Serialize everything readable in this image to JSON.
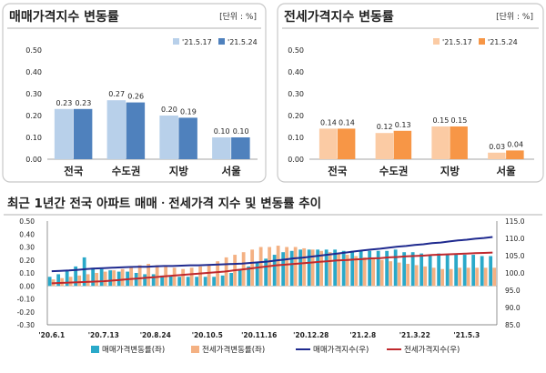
{
  "chart_data": [
    {
      "type": "bar",
      "title": "매매가격지수 변동률",
      "unit_label": "[단위 : %]",
      "categories": [
        "전국",
        "수도권",
        "지방",
        "서울"
      ],
      "series": [
        {
          "name": "'21.5.17",
          "values": [
            0.23,
            0.27,
            0.2,
            0.1
          ],
          "color": "#b8d0ea"
        },
        {
          "name": "'21.5.24",
          "values": [
            0.23,
            0.26,
            0.19,
            0.1
          ],
          "color": "#4f81bd"
        }
      ],
      "value_labels": [
        [
          "0.23",
          "0.27",
          "0.20",
          "0.10"
        ],
        [
          "0.23",
          "0.26",
          "0.19",
          "0.10"
        ]
      ],
      "ylim": [
        0,
        0.5
      ],
      "yticks": [
        "0.00",
        "0.10",
        "0.20",
        "0.30",
        "0.40",
        "0.50"
      ],
      "grid": false,
      "legend": "top-right"
    },
    {
      "type": "bar",
      "title": "전세가격지수 변동률",
      "unit_label": "[단위 : %]",
      "categories": [
        "전국",
        "수도권",
        "지방",
        "서울"
      ],
      "series": [
        {
          "name": "'21.5.17",
          "values": [
            0.14,
            0.12,
            0.15,
            0.03
          ],
          "color": "#fbcba4"
        },
        {
          "name": "'21.5.24",
          "values": [
            0.14,
            0.13,
            0.15,
            0.04
          ],
          "color": "#f79646"
        }
      ],
      "value_labels": [
        [
          "0.14",
          "0.12",
          "0.15",
          "0.03"
        ],
        [
          "0.14",
          "0.13",
          "0.15",
          "0.04"
        ]
      ],
      "ylim": [
        0,
        0.5
      ],
      "yticks": [
        "0.00",
        "0.10",
        "0.20",
        "0.30",
        "0.40",
        "0.50"
      ],
      "grid": false,
      "legend": "top-right"
    },
    {
      "type": "bar+line",
      "title": "최근 1년간 전국 아파트 매매ㆍ전세가격 지수 및 변동률 추이",
      "x_tick_labels": [
        "'20.6.1",
        "'20.7.13",
        "'20.8.24",
        "'20.10.5",
        "'20.11.16",
        "'20.12.28",
        "'21.2.8",
        "'21.3.22",
        "'21.5.3"
      ],
      "weeks": 52,
      "y_left": {
        "lim": [
          -0.3,
          0.5
        ],
        "ticks": [
          "0.50",
          "0.40",
          "0.30",
          "0.20",
          "0.10",
          "0.00",
          "-0.10",
          "-0.20",
          "-0.30"
        ]
      },
      "y_right": {
        "lim": [
          85,
          115
        ],
        "ticks": [
          "115.0",
          "110.0",
          "105.0",
          "100.0",
          "95.0",
          "90.0",
          "85.0"
        ]
      },
      "series": [
        {
          "name": "매매가격변동률(좌)",
          "type": "bar",
          "axis": "left",
          "color": "#2aa9c9",
          "values": [
            0.07,
            0.09,
            0.12,
            0.15,
            0.22,
            0.14,
            0.13,
            0.12,
            0.11,
            0.11,
            0.1,
            0.09,
            0.09,
            0.08,
            0.08,
            0.07,
            0.07,
            0.07,
            0.07,
            0.07,
            0.08,
            0.1,
            0.13,
            0.15,
            0.18,
            0.21,
            0.24,
            0.26,
            0.27,
            0.28,
            0.28,
            0.28,
            0.28,
            0.28,
            0.27,
            0.27,
            0.27,
            0.27,
            0.27,
            0.27,
            0.28,
            0.26,
            0.26,
            0.25,
            0.24,
            0.25,
            0.24,
            0.24,
            0.24,
            0.24,
            0.23,
            0.23
          ]
        },
        {
          "name": "전세가격변동률(좌)",
          "type": "bar",
          "axis": "left",
          "color": "#f4b183",
          "values": [
            0.05,
            0.06,
            0.07,
            0.08,
            0.09,
            0.1,
            0.11,
            0.12,
            0.13,
            0.15,
            0.16,
            0.17,
            0.16,
            0.15,
            0.14,
            0.13,
            0.14,
            0.15,
            0.16,
            0.19,
            0.22,
            0.24,
            0.26,
            0.28,
            0.3,
            0.3,
            0.31,
            0.3,
            0.3,
            0.29,
            0.28,
            0.27,
            0.26,
            0.25,
            0.24,
            0.23,
            0.22,
            0.21,
            0.2,
            0.19,
            0.18,
            0.17,
            0.16,
            0.15,
            0.14,
            0.13,
            0.13,
            0.14,
            0.14,
            0.14,
            0.14,
            0.14
          ]
        },
        {
          "name": "매매가격지수(우)",
          "type": "line",
          "axis": "right",
          "color": "#1f2a8f",
          "values": [
            100.5,
            100.6,
            100.7,
            100.9,
            101.1,
            101.3,
            101.4,
            101.5,
            101.6,
            101.7,
            101.8,
            101.8,
            101.9,
            102.0,
            102.0,
            102.1,
            102.2,
            102.2,
            102.3,
            102.4,
            102.5,
            102.6,
            102.7,
            102.9,
            103.1,
            103.3,
            103.6,
            103.9,
            104.2,
            104.4,
            104.7,
            105.0,
            105.3,
            105.6,
            105.9,
            106.2,
            106.5,
            106.8,
            107.0,
            107.3,
            107.6,
            107.8,
            108.1,
            108.3,
            108.6,
            108.8,
            109.1,
            109.4,
            109.6,
            109.9,
            110.1,
            110.4
          ]
        },
        {
          "name": "전세가격지수(우)",
          "type": "line",
          "axis": "right",
          "color": "#c0282d",
          "values": [
            97.0,
            97.1,
            97.2,
            97.3,
            97.4,
            97.5,
            97.6,
            97.8,
            98.0,
            98.2,
            98.4,
            98.6,
            98.8,
            99.0,
            99.2,
            99.4,
            99.6,
            99.8,
            100.0,
            100.2,
            100.4,
            100.7,
            101.0,
            101.3,
            101.6,
            101.9,
            102.2,
            102.4,
            102.6,
            102.8,
            103.0,
            103.2,
            103.4,
            103.6,
            103.7,
            103.9,
            104.0,
            104.2,
            104.3,
            104.5,
            104.6,
            104.8,
            104.9,
            105.0,
            105.2,
            105.3,
            105.4,
            105.5,
            105.6,
            105.7,
            105.8,
            105.9
          ]
        }
      ],
      "legend": "bottom"
    }
  ]
}
